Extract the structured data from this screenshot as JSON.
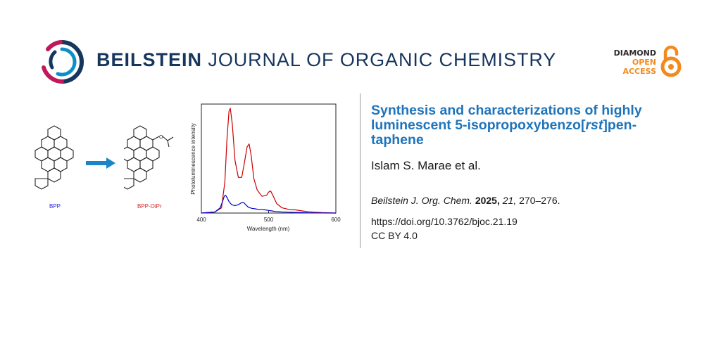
{
  "journal": {
    "name_bold": "BEILSTEIN",
    "name_rest": " JOURNAL OF ORGANIC CHEMISTRY",
    "brand_color": "#17365d",
    "logo_colors": [
      "#17365d",
      "#0d8ec6",
      "#c0185a"
    ]
  },
  "open_access": {
    "line1": "DIAMOND",
    "line2": "OPEN",
    "line3": "ACCESS",
    "line1_color": "#2c2c2c",
    "accent_color": "#f28b1e",
    "icon": "open-lock-icon"
  },
  "graphical_abstract": {
    "molecule_left_label": "BPP",
    "molecule_left_color": "#2222dd",
    "molecule_right_label": "BPP-OiPr",
    "molecule_right_color": "#dd2222",
    "arrow_color": "#1a86c8",
    "arrow_icon": "right-arrow-icon"
  },
  "chart_data": {
    "type": "line",
    "xlabel": "Wavelength (nm)",
    "ylabel": "Photoluminescence intensity",
    "xlim": [
      400,
      600
    ],
    "ylim": [
      0,
      1
    ],
    "xticks": [
      "400",
      "500",
      "600"
    ],
    "grid": false,
    "series": [
      {
        "color": "#cc0000",
        "x": [
          400,
          420,
          430,
          435,
          438,
          441,
          443,
          446,
          450,
          455,
          460,
          464,
          468,
          471,
          474,
          478,
          483,
          490,
          497,
          500,
          503,
          507,
          512,
          520,
          530,
          540,
          550,
          560,
          570,
          580,
          600
        ],
        "y": [
          0.0,
          0.01,
          0.05,
          0.3,
          0.7,
          0.97,
          1.0,
          0.85,
          0.5,
          0.34,
          0.34,
          0.48,
          0.63,
          0.66,
          0.55,
          0.33,
          0.22,
          0.16,
          0.17,
          0.2,
          0.21,
          0.16,
          0.09,
          0.05,
          0.035,
          0.03,
          0.02,
          0.012,
          0.008,
          0.004,
          0.0
        ]
      },
      {
        "color": "#0000cc",
        "x": [
          400,
          420,
          428,
          432,
          434,
          436,
          438,
          441,
          445,
          450,
          455,
          460,
          463,
          466,
          470,
          475,
          480,
          485,
          490,
          495,
          500,
          505,
          510,
          520,
          530,
          540,
          550,
          560,
          580,
          600
        ],
        "y": [
          0.0,
          0.01,
          0.05,
          0.12,
          0.16,
          0.17,
          0.15,
          0.11,
          0.08,
          0.07,
          0.08,
          0.1,
          0.1,
          0.08,
          0.055,
          0.045,
          0.04,
          0.035,
          0.035,
          0.03,
          0.025,
          0.02,
          0.015,
          0.01,
          0.008,
          0.006,
          0.004,
          0.002,
          0.001,
          0.0
        ]
      }
    ]
  },
  "paper": {
    "title_line1": "Synthesis and characterizations of highly",
    "title_line2_pre": "luminescent 5-isopropoxybenzo[",
    "title_line2_ital": "rst",
    "title_line2_post": "]pen-",
    "title_line3": "taphene",
    "authors": "Islam S. Marae et al.",
    "citation_journal": "Beilstein J. Org. Chem.",
    "citation_year": "2025,",
    "citation_volume": "21,",
    "citation_pages": "270–276.",
    "doi": "https://doi.org/10.3762/bjoc.21.19",
    "license": "CC BY 4.0"
  }
}
